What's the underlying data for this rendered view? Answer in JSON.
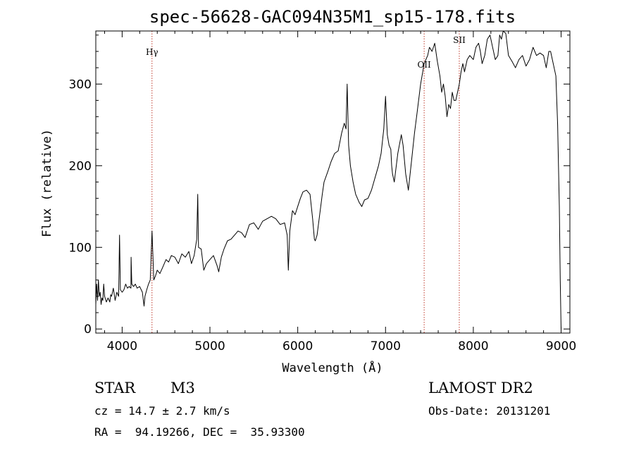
{
  "chart_data": {
    "type": "line",
    "title": "spec-56628-GAC094N35M1_sp15-178.fits",
    "xlabel": "Wavelength (Å)",
    "ylabel": "Flux (relative)",
    "xlim": [
      3700,
      9100
    ],
    "ylim": [
      -5,
      365
    ],
    "xticks": [
      4000,
      5000,
      6000,
      7000,
      8000,
      9000
    ],
    "yticks": [
      0,
      100,
      200,
      300
    ],
    "grid": false,
    "line_color": "#000000",
    "marker_color": "#c0392b",
    "spectral_lines": [
      {
        "name": "Hγ",
        "x": 4340
      },
      {
        "name": "OII",
        "x": 7440
      },
      {
        "name": "SII",
        "x": 7840
      }
    ],
    "series": [
      {
        "x": [
          3700,
          3710,
          3720,
          3730,
          3740,
          3750,
          3760,
          3770,
          3780,
          3790,
          3800,
          3820,
          3840,
          3860,
          3870,
          3880,
          3900,
          3920,
          3940,
          3960,
          3970,
          3980,
          4000,
          4020,
          4040,
          4060,
          4080,
          4100,
          4102,
          4110,
          4130,
          4150,
          4170,
          4200,
          4230,
          4250,
          4260,
          4280,
          4300,
          4320,
          4340,
          4360,
          4380,
          4400,
          4430,
          4460,
          4500,
          4530,
          4560,
          4600,
          4640,
          4680,
          4720,
          4760,
          4790,
          4820,
          4850,
          4861,
          4870,
          4900,
          4930,
          4960,
          5000,
          5040,
          5080,
          5100,
          5130,
          5160,
          5200,
          5240,
          5280,
          5320,
          5360,
          5400,
          5450,
          5500,
          5550,
          5600,
          5650,
          5700,
          5750,
          5800,
          5850,
          5880,
          5893,
          5910,
          5940,
          5970,
          6000,
          6030,
          6060,
          6100,
          6140,
          6170,
          6190,
          6200,
          6220,
          6250,
          6280,
          6300,
          6340,
          6380,
          6420,
          6460,
          6500,
          6530,
          6550,
          6563,
          6580,
          6600,
          6630,
          6660,
          6700,
          6730,
          6760,
          6800,
          6840,
          6880,
          6920,
          6950,
          6980,
          7000,
          7020,
          7040,
          7060,
          7070,
          7080,
          7100,
          7140,
          7180,
          7200,
          7230,
          7260,
          7300,
          7330,
          7360,
          7400,
          7440,
          7460,
          7480,
          7500,
          7530,
          7560,
          7590,
          7620,
          7640,
          7660,
          7680,
          7700,
          7720,
          7740,
          7760,
          7780,
          7800,
          7820,
          7840,
          7860,
          7880,
          7900,
          7930,
          7960,
          8000,
          8030,
          8060,
          8080,
          8100,
          8130,
          8160,
          8190,
          8220,
          8250,
          8280,
          8300,
          8320,
          8340,
          8370,
          8400,
          8440,
          8480,
          8520,
          8560,
          8600,
          8640,
          8680,
          8720,
          8760,
          8800,
          8830,
          8860,
          8880,
          8900,
          8920,
          8940,
          8960,
          8970,
          8980,
          8990,
          9000
        ],
        "y": [
          30,
          55,
          35,
          60,
          40,
          45,
          30,
          38,
          35,
          55,
          40,
          33,
          38,
          33,
          42,
          40,
          50,
          35,
          45,
          40,
          115,
          48,
          45,
          48,
          55,
          50,
          52,
          50,
          88,
          55,
          52,
          55,
          50,
          52,
          45,
          28,
          40,
          48,
          55,
          60,
          120,
          60,
          65,
          72,
          68,
          75,
          85,
          82,
          90,
          88,
          80,
          92,
          88,
          95,
          80,
          90,
          110,
          165,
          100,
          98,
          72,
          80,
          85,
          90,
          78,
          70,
          88,
          98,
          108,
          110,
          115,
          120,
          118,
          112,
          128,
          130,
          122,
          132,
          135,
          138,
          135,
          128,
          130,
          115,
          72,
          120,
          145,
          140,
          150,
          160,
          168,
          170,
          165,
          135,
          110,
          108,
          115,
          140,
          165,
          180,
          192,
          205,
          215,
          218,
          240,
          252,
          245,
          300,
          225,
          200,
          180,
          165,
          155,
          150,
          158,
          160,
          170,
          185,
          200,
          215,
          245,
          285,
          238,
          225,
          220,
          200,
          190,
          180,
          215,
          238,
          225,
          190,
          170,
          210,
          240,
          265,
          300,
          325,
          330,
          335,
          345,
          340,
          350,
          328,
          310,
          290,
          300,
          285,
          260,
          275,
          270,
          290,
          280,
          280,
          290,
          300,
          315,
          325,
          315,
          330,
          335,
          330,
          345,
          350,
          340,
          325,
          335,
          355,
          360,
          345,
          330,
          335,
          360,
          355,
          365,
          362,
          335,
          328,
          320,
          330,
          335,
          322,
          330,
          345,
          335,
          338,
          335,
          320,
          340,
          340,
          330,
          320,
          310,
          250,
          200,
          150,
          60,
          0
        ]
      }
    ]
  },
  "footer": {
    "object_type": "STAR",
    "subclass": "M3",
    "cz": "cz = 14.7 ± 2.7 km/s",
    "coords": "RA =  94.19266, DEC =  35.93300",
    "survey": "LAMOST DR2",
    "obs_date": "Obs-Date: 20131201"
  }
}
